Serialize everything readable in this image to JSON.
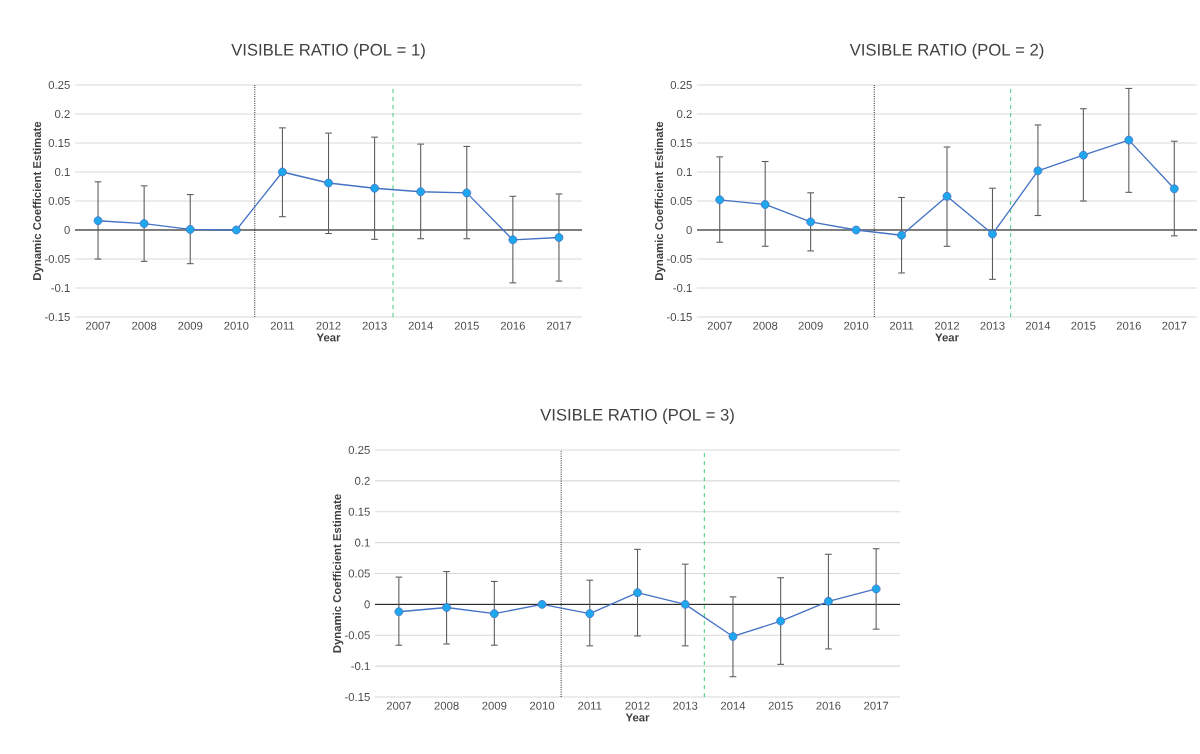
{
  "chart_data": [
    {
      "type": "line",
      "title": "VISIBLE RATIO (POL = 1)",
      "xlabel": "Year",
      "ylabel": "Dynamic Coefficient Estimate",
      "color": "#4472c4",
      "marker": "circle",
      "grid": "y",
      "x": [
        2007,
        2008,
        2009,
        2010,
        2011,
        2012,
        2013,
        2014,
        2015,
        2016,
        2017
      ],
      "values": [
        0.016,
        0.011,
        0.001,
        0,
        0.1,
        0.081,
        0.072,
        0.066,
        0.064,
        -0.017,
        -0.013
      ],
      "errors": [
        [
          -0.051,
          0.084
        ],
        [
          -0.055,
          0.077
        ],
        [
          -0.059,
          0.062
        ],
        null,
        [
          0.022,
          0.177
        ],
        [
          -0.007,
          0.168
        ],
        [
          -0.017,
          0.161
        ],
        [
          -0.016,
          0.149
        ],
        [
          -0.016,
          0.145
        ],
        [
          -0.092,
          0.059
        ],
        [
          -0.089,
          0.063
        ]
      ],
      "ref_lines": [
        {
          "axis": "x",
          "value": 2010.4,
          "color": "#000000",
          "line_style": "dotted"
        },
        {
          "axis": "x",
          "value": 2013.4,
          "color": "#2ecc71",
          "line_style": "dashed"
        }
      ],
      "xlim": [
        2006.5,
        2017.5
      ],
      "ylim": [
        -0.15,
        0.25
      ],
      "xticks": [
        2007,
        2008,
        2009,
        2010,
        2011,
        2012,
        2013,
        2014,
        2015,
        2016,
        2017
      ],
      "yticks": [
        -0.15,
        -0.1,
        -0.05,
        0,
        0.05,
        0.1,
        0.15,
        0.2,
        0.25
      ]
    },
    {
      "type": "line",
      "title": "VISIBLE RATIO (POL = 2)",
      "xlabel": "Year",
      "ylabel": "Dynamic Coefficient Estimate",
      "color": "#4472c4",
      "marker": "circle",
      "grid": "y",
      "x": [
        2007,
        2008,
        2009,
        2010,
        2011,
        2012,
        2013,
        2014,
        2015,
        2016,
        2017
      ],
      "values": [
        0.052,
        0.044,
        0.014,
        0,
        -0.009,
        0.058,
        -0.007,
        0.102,
        0.129,
        0.155,
        0.071
      ],
      "errors": [
        [
          -0.022,
          0.127
        ],
        [
          -0.029,
          0.119
        ],
        [
          -0.037,
          0.065
        ],
        null,
        [
          -0.075,
          0.057
        ],
        [
          -0.029,
          0.144
        ],
        [
          -0.086,
          0.073
        ],
        [
          0.024,
          0.182
        ],
        [
          0.049,
          0.21
        ],
        [
          0.064,
          0.245
        ],
        [
          -0.011,
          0.154
        ]
      ],
      "ref_lines": [
        {
          "axis": "x",
          "value": 2010.4,
          "color": "#000000",
          "line_style": "dotted"
        },
        {
          "axis": "x",
          "value": 2013.4,
          "color": "#2ecc71",
          "line_style": "dashed"
        }
      ],
      "xlim": [
        2006.5,
        2017.5
      ],
      "ylim": [
        -0.15,
        0.25
      ],
      "xticks": [
        2007,
        2008,
        2009,
        2010,
        2011,
        2012,
        2013,
        2014,
        2015,
        2016,
        2017
      ],
      "yticks": [
        -0.15,
        -0.1,
        -0.05,
        0,
        0.05,
        0.1,
        0.15,
        0.2,
        0.25
      ]
    },
    {
      "type": "line",
      "title": "VISIBLE RATIO (POL = 3)",
      "xlabel": "Year",
      "ylabel": "Dynamic Coefficient Estimate",
      "color": "#4472c4",
      "marker": "circle",
      "grid": "y",
      "x": [
        2007,
        2008,
        2009,
        2010,
        2011,
        2012,
        2013,
        2014,
        2015,
        2016,
        2017
      ],
      "values": [
        -0.012,
        -0.005,
        -0.015,
        0,
        -0.015,
        0.019,
        0,
        -0.052,
        -0.027,
        0.005,
        0.025
      ],
      "errors": [
        [
          -0.067,
          0.045
        ],
        [
          -0.065,
          0.054
        ],
        [
          -0.067,
          0.038
        ],
        null,
        [
          -0.068,
          0.04
        ],
        [
          -0.052,
          0.09
        ],
        [
          -0.068,
          0.066
        ],
        [
          -0.118,
          0.013
        ],
        [
          -0.098,
          0.044
        ],
        [
          -0.073,
          0.082
        ],
        [
          -0.041,
          0.091
        ]
      ],
      "ref_lines": [
        {
          "axis": "x",
          "value": 2010.4,
          "color": "#000000",
          "line_style": "dotted"
        },
        {
          "axis": "x",
          "value": 2013.4,
          "color": "#2ecc71",
          "line_style": "dashed"
        }
      ],
      "xlim": [
        2006.5,
        2017.5
      ],
      "ylim": [
        -0.15,
        0.25
      ],
      "xticks": [
        2007,
        2008,
        2009,
        2010,
        2011,
        2012,
        2013,
        2014,
        2015,
        2016,
        2017
      ],
      "yticks": [
        -0.15,
        -0.1,
        -0.05,
        0,
        0.05,
        0.1,
        0.15,
        0.2,
        0.25
      ]
    }
  ]
}
